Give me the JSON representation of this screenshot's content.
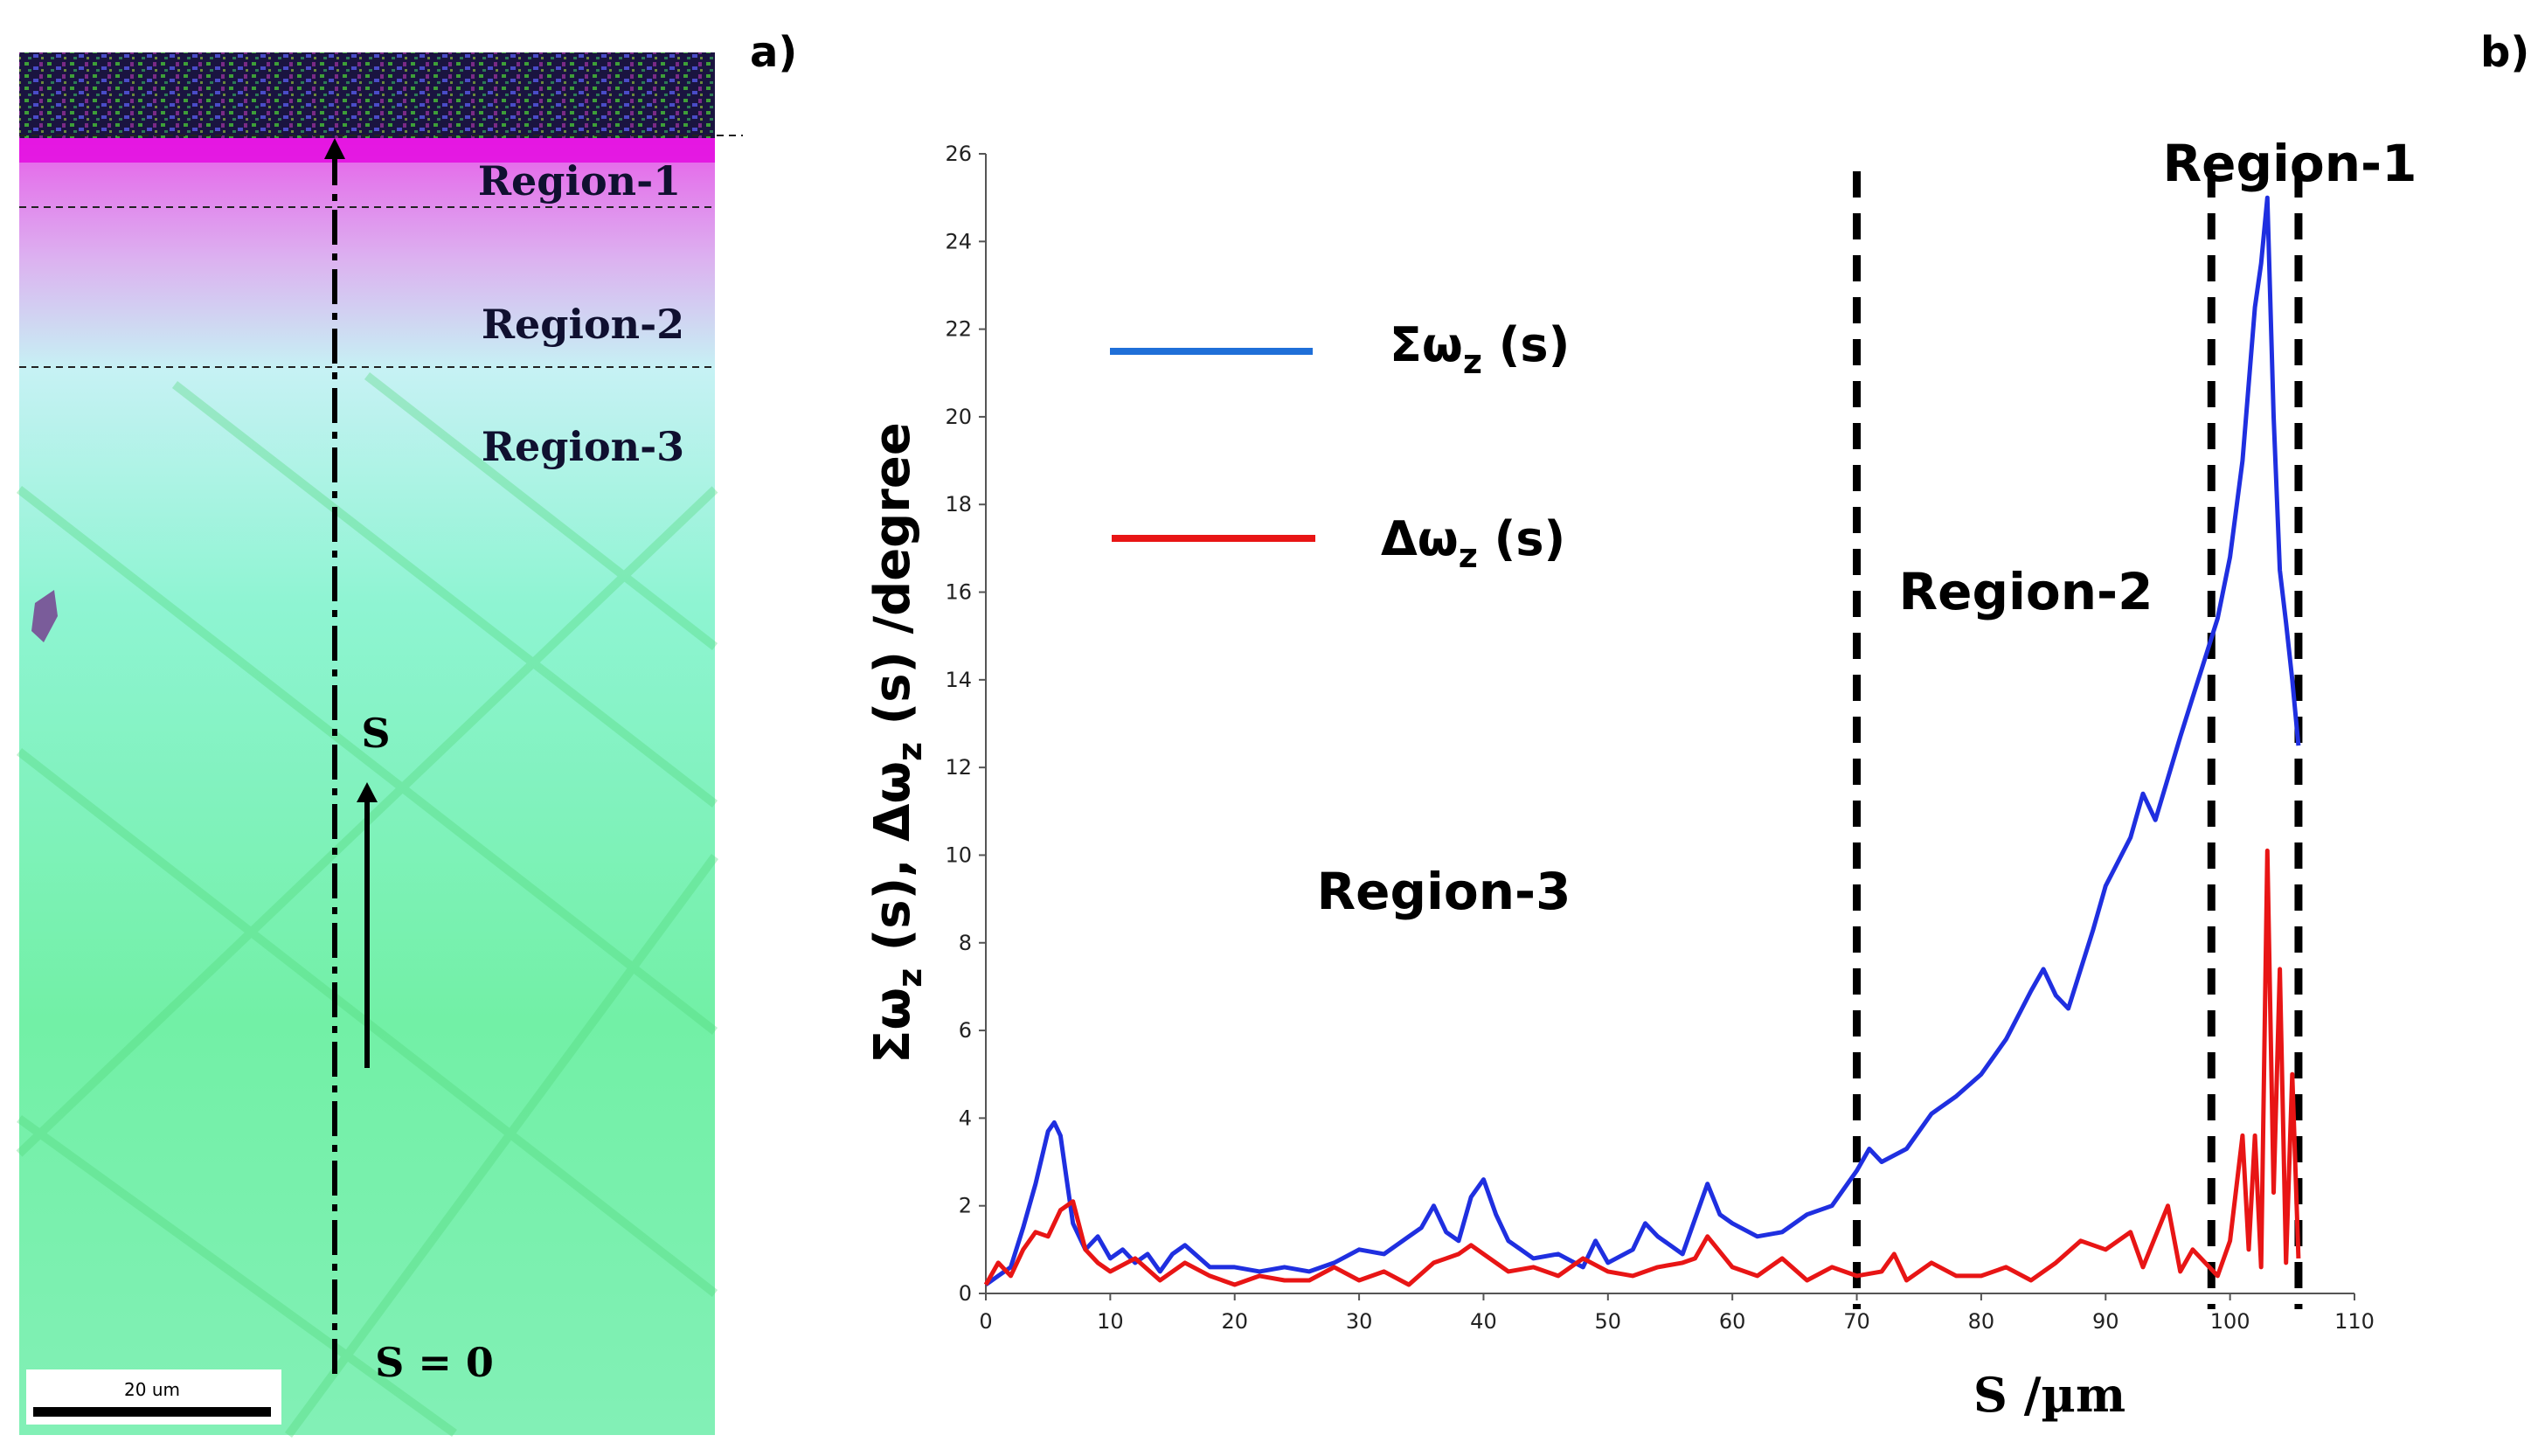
{
  "panel_a": {
    "label": "a)",
    "regions": [
      "Region-1",
      "Region-2",
      "Region-3"
    ],
    "arrow_label": "S",
    "origin_label": "S = 0",
    "scale_bar_label": "20 um"
  },
  "panel_b": {
    "label": "b)"
  },
  "chart_data": {
    "type": "line",
    "xlabel": "S /µm",
    "ylabel": "Σωz (s), Δωz (s) /degree",
    "xlim": [
      0,
      110
    ],
    "ylim": [
      0,
      26
    ],
    "x_ticks": [
      "0",
      "10",
      "20",
      "30",
      "40",
      "50",
      "60",
      "70",
      "80",
      "90",
      "100",
      "110"
    ],
    "y_ticks": [
      "0",
      "2",
      "4",
      "6",
      "8",
      "10",
      "12",
      "14",
      "16",
      "18",
      "20",
      "22",
      "24",
      "26"
    ],
    "grid": false,
    "legend_position": "top-left",
    "series": [
      {
        "name": "Σωz (s)",
        "name_main": "Σω",
        "name_sub": "z",
        "name_suffix": " (s)",
        "color": "#1f2fe0",
        "x": [
          0,
          1,
          2,
          3,
          4,
          5,
          5.5,
          6,
          6.5,
          7,
          8,
          9,
          10,
          11,
          12,
          13,
          14,
          15,
          16,
          18,
          20,
          22,
          24,
          26,
          28,
          30,
          32,
          34,
          35,
          36,
          37,
          38,
          39,
          40,
          41,
          42,
          43,
          44,
          46,
          48,
          49,
          50,
          52,
          53,
          54,
          56,
          58,
          59,
          60,
          62,
          64,
          66,
          68,
          70,
          71,
          72,
          74,
          76,
          78,
          80,
          82,
          84,
          85,
          86,
          87,
          88,
          89,
          90,
          92,
          93,
          94,
          96,
          97,
          98,
          99,
          100,
          101,
          102,
          102.5,
          103,
          103.5,
          104,
          104.5,
          105,
          105.5
        ],
        "values": [
          0.2,
          0.4,
          0.6,
          1.5,
          2.5,
          3.7,
          3.9,
          3.6,
          2.6,
          1.6,
          1.0,
          1.3,
          0.8,
          1.0,
          0.7,
          0.9,
          0.5,
          0.9,
          1.1,
          0.6,
          0.6,
          0.5,
          0.6,
          0.5,
          0.7,
          1.0,
          0.9,
          1.3,
          1.5,
          2.0,
          1.4,
          1.2,
          2.2,
          2.6,
          1.8,
          1.2,
          1.0,
          0.8,
          0.9,
          0.6,
          1.2,
          0.7,
          1.0,
          1.6,
          1.3,
          0.9,
          2.5,
          1.8,
          1.6,
          1.3,
          1.4,
          1.8,
          2.0,
          2.8,
          3.3,
          3.0,
          3.3,
          4.1,
          4.5,
          5.0,
          5.8,
          6.9,
          7.4,
          6.8,
          6.5,
          7.4,
          8.3,
          9.3,
          10.4,
          11.4,
          10.8,
          12.7,
          13.6,
          14.5,
          15.4,
          16.8,
          19.0,
          22.5,
          23.5,
          25.0,
          20.0,
          16.5,
          15.3,
          14.0,
          12.5
        ]
      },
      {
        "name": "Δωz (s)",
        "name_main": "Δω",
        "name_sub": "z",
        "name_suffix": " (s)",
        "color": "#e81515",
        "x": [
          0,
          1,
          2,
          3,
          4,
          5,
          6,
          7,
          8,
          9,
          10,
          12,
          14,
          16,
          18,
          20,
          22,
          24,
          26,
          28,
          30,
          32,
          34,
          36,
          38,
          39,
          40,
          41,
          42,
          44,
          46,
          48,
          50,
          52,
          54,
          56,
          57,
          58,
          60,
          62,
          64,
          66,
          68,
          70,
          72,
          73,
          74,
          76,
          78,
          80,
          82,
          84,
          86,
          88,
          90,
          92,
          93,
          94,
          95,
          96,
          97,
          98,
          99,
          100,
          101,
          101.5,
          102,
          102.5,
          103,
          103.5,
          104,
          104.5,
          105,
          105.5
        ],
        "values": [
          0.2,
          0.7,
          0.4,
          1.0,
          1.4,
          1.3,
          1.9,
          2.1,
          1.0,
          0.7,
          0.5,
          0.8,
          0.3,
          0.7,
          0.4,
          0.2,
          0.4,
          0.3,
          0.3,
          0.6,
          0.3,
          0.5,
          0.2,
          0.7,
          0.9,
          1.1,
          0.9,
          0.7,
          0.5,
          0.6,
          0.4,
          0.8,
          0.5,
          0.4,
          0.6,
          0.7,
          0.8,
          1.3,
          0.6,
          0.4,
          0.8,
          0.3,
          0.6,
          0.4,
          0.5,
          0.9,
          0.3,
          0.7,
          0.4,
          0.4,
          0.6,
          0.3,
          0.7,
          1.2,
          1.0,
          1.4,
          0.6,
          1.3,
          2.0,
          0.5,
          1.0,
          0.7,
          0.4,
          1.2,
          3.6,
          1.0,
          3.6,
          0.6,
          10.1,
          2.3,
          7.4,
          0.7,
          5.0,
          0.8
        ]
      }
    ],
    "annotations": [
      {
        "text": "Region-1"
      },
      {
        "text": "Region-2"
      },
      {
        "text": "Region-3"
      }
    ],
    "boundary_lines_x": [
      70,
      98.5,
      105.5
    ]
  }
}
